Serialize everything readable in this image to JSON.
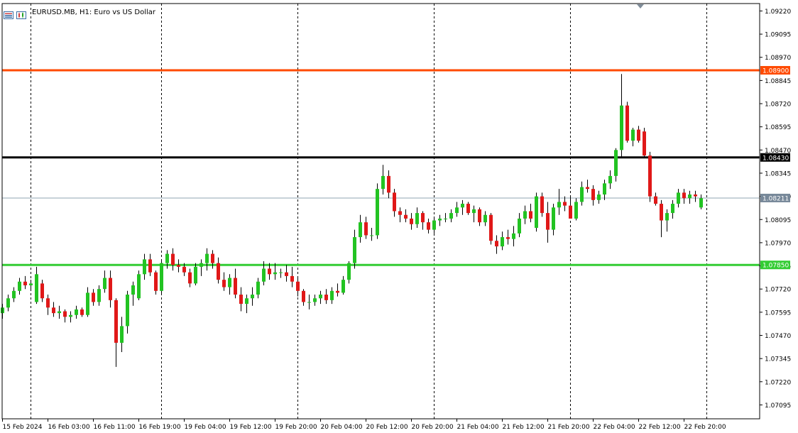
{
  "header": {
    "symbol": "EURUSD.MB",
    "timeframe": "H1",
    "description": "Euro vs US Dollar",
    "title": "EURUSD.MB, H1:  Euro vs US Dollar"
  },
  "colors": {
    "background": "#ffffff",
    "grid": "#000000",
    "bull": "#22c322",
    "bear": "#e01818",
    "wick": "#000000",
    "axis_text": "#000000",
    "resistance": "#ff4a00",
    "pivot": "#000000",
    "support": "#33cc33",
    "bid_line": "#8fa6b3",
    "bid_label_bg": "#778899"
  },
  "chart_data": {
    "type": "candlestick",
    "symbol": "EURUSD.MB",
    "timeframe": "H1",
    "ylim": [
      1.0702,
      1.0926
    ],
    "y_ticks": [
      "1.09220",
      "1.09095",
      "1.08970",
      "1.08845",
      "1.08720",
      "1.08595",
      "1.08470",
      "1.08345",
      "1.08220",
      "1.08095",
      "1.07970",
      "1.07845",
      "1.07720",
      "1.07595",
      "1.07470",
      "1.07345",
      "1.07220",
      "1.07095"
    ],
    "x_labels": [
      "15 Feb 2024",
      "16 Feb 03:00",
      "16 Feb 11:00",
      "16 Feb 19:00",
      "19 Feb 04:00",
      "19 Feb 12:00",
      "19 Feb 20:00",
      "20 Feb 04:00",
      "20 Feb 12:00",
      "20 Feb 20:00",
      "21 Feb 04:00",
      "21 Feb 12:00",
      "21 Feb 20:00",
      "22 Feb 04:00",
      "22 Feb 12:00",
      "22 Feb 20:00"
    ],
    "x_label_bars": [
      0,
      8,
      16,
      24,
      32,
      40,
      48,
      56,
      64,
      72,
      80,
      88,
      96,
      104,
      112,
      120
    ],
    "separator_bars": [
      5,
      28,
      52,
      76,
      100,
      124
    ],
    "hlines": [
      {
        "price": 1.089,
        "label": "1.08900",
        "color_key": "resistance"
      },
      {
        "price": 1.0843,
        "label": "1.08430",
        "color_key": "pivot"
      },
      {
        "price": 1.0785,
        "label": "1.07850",
        "color_key": "support"
      }
    ],
    "bid": {
      "price": 1.08211,
      "label": "1.08211"
    },
    "candles": [
      [
        1.0759,
        1.0764,
        1.0756,
        1.0762
      ],
      [
        1.0762,
        1.0769,
        1.076,
        1.0767
      ],
      [
        1.0767,
        1.0773,
        1.0765,
        1.0771
      ],
      [
        1.0771,
        1.0778,
        1.0769,
        1.0776
      ],
      [
        1.0776,
        1.0779,
        1.0772,
        1.0774
      ],
      [
        1.0774,
        1.0777,
        1.0771,
        1.0775
      ],
      [
        1.0765,
        1.0784,
        1.0764,
        1.078
      ],
      [
        1.0775,
        1.0777,
        1.0765,
        1.0767
      ],
      [
        1.0767,
        1.0769,
        1.0758,
        1.0762
      ],
      [
        1.0762,
        1.0765,
        1.0757,
        1.0759
      ],
      [
        1.0759,
        1.0763,
        1.0756,
        1.076
      ],
      [
        1.076,
        1.0761,
        1.0754,
        1.0757
      ],
      [
        1.0757,
        1.076,
        1.0754,
        1.0758
      ],
      [
        1.0758,
        1.0763,
        1.0756,
        1.0761
      ],
      [
        1.0761,
        1.0762,
        1.0757,
        1.0758
      ],
      [
        1.0758,
        1.0773,
        1.0757,
        1.077
      ],
      [
        1.077,
        1.0772,
        1.0763,
        1.0765
      ],
      [
        1.0765,
        1.0774,
        1.0763,
        1.0772
      ],
      [
        1.0772,
        1.0782,
        1.077,
        1.0778
      ],
      [
        1.0778,
        1.0782,
        1.0762,
        1.0766
      ],
      [
        1.0766,
        1.0767,
        1.073,
        1.0743
      ],
      [
        1.0743,
        1.0757,
        1.0738,
        1.0752
      ],
      [
        1.0752,
        1.0771,
        1.0748,
        1.0769
      ],
      [
        1.0769,
        1.0776,
        1.0763,
        1.0774
      ],
      [
        1.0767,
        1.0782,
        1.0766,
        1.078
      ],
      [
        1.078,
        1.0791,
        1.0777,
        1.0788
      ],
      [
        1.0788,
        1.0791,
        1.0779,
        1.0781
      ],
      [
        1.0781,
        1.0782,
        1.0769,
        1.0771
      ],
      [
        1.0771,
        1.0788,
        1.0769,
        1.0786
      ],
      [
        1.0786,
        1.0793,
        1.0783,
        1.0791
      ],
      [
        1.0791,
        1.0794,
        1.0782,
        1.0785
      ],
      [
        1.0785,
        1.0788,
        1.0781,
        1.0784
      ],
      [
        1.0784,
        1.0786,
        1.0779,
        1.0781
      ],
      [
        1.0781,
        1.0783,
        1.0773,
        1.0775
      ],
      [
        1.0775,
        1.0786,
        1.0774,
        1.0784
      ],
      [
        1.0784,
        1.0788,
        1.0779,
        1.0786
      ],
      [
        1.0786,
        1.0794,
        1.0782,
        1.0791
      ],
      [
        1.0791,
        1.0793,
        1.0783,
        1.0786
      ],
      [
        1.0786,
        1.0789,
        1.0775,
        1.0777
      ],
      [
        1.0777,
        1.0781,
        1.0771,
        1.0773
      ],
      [
        1.0773,
        1.078,
        1.0769,
        1.0778
      ],
      [
        1.0778,
        1.0783,
        1.0767,
        1.0769
      ],
      [
        1.0769,
        1.0773,
        1.076,
        1.0764
      ],
      [
        1.0764,
        1.0769,
        1.0759,
        1.0767
      ],
      [
        1.0767,
        1.0773,
        1.0763,
        1.0769
      ],
      [
        1.0769,
        1.0778,
        1.0767,
        1.0776
      ],
      [
        1.0776,
        1.0787,
        1.0774,
        1.0783
      ],
      [
        1.0783,
        1.0786,
        1.0777,
        1.078
      ],
      [
        1.078,
        1.0786,
        1.0777,
        1.0781
      ],
      [
        1.0781,
        1.0783,
        1.0778,
        1.0781
      ],
      [
        1.0781,
        1.0785,
        1.0776,
        1.0779
      ],
      [
        1.0779,
        1.0784,
        1.0773,
        1.0776
      ],
      [
        1.0776,
        1.0778,
        1.0768,
        1.0771
      ],
      [
        1.0771,
        1.0772,
        1.0763,
        1.0765
      ],
      [
        1.0765,
        1.0769,
        1.0761,
        1.0765
      ],
      [
        1.0765,
        1.0769,
        1.0763,
        1.0767
      ],
      [
        1.0767,
        1.0771,
        1.0764,
        1.0769
      ],
      [
        1.0769,
        1.0772,
        1.0764,
        1.0766
      ],
      [
        1.0766,
        1.0773,
        1.0764,
        1.0771
      ],
      [
        1.0771,
        1.0775,
        1.0768,
        1.077
      ],
      [
        1.077,
        1.0779,
        1.0769,
        1.0777
      ],
      [
        1.0777,
        1.0787,
        1.0775,
        1.0786
      ],
      [
        1.0786,
        1.0804,
        1.0783,
        1.08
      ],
      [
        1.08,
        1.0812,
        1.0797,
        1.0808
      ],
      [
        1.0808,
        1.0811,
        1.0799,
        1.0801
      ],
      [
        1.0801,
        1.0805,
        1.0798,
        1.0801
      ],
      [
        1.0801,
        1.0829,
        1.0799,
        1.0826
      ],
      [
        1.0826,
        1.0839,
        1.0823,
        1.0833
      ],
      [
        1.0833,
        1.0836,
        1.0821,
        1.0824
      ],
      [
        1.0824,
        1.0826,
        1.0811,
        1.0814
      ],
      [
        1.0814,
        1.0816,
        1.0808,
        1.0812
      ],
      [
        1.0812,
        1.0815,
        1.0808,
        1.081
      ],
      [
        1.081,
        1.0813,
        1.0804,
        1.0807
      ],
      [
        1.0807,
        1.0816,
        1.0805,
        1.0813
      ],
      [
        1.0813,
        1.0814,
        1.0804,
        1.0808
      ],
      [
        1.0808,
        1.081,
        1.0802,
        1.0804
      ],
      [
        1.0804,
        1.0811,
        1.0802,
        1.0809
      ],
      [
        1.0809,
        1.0812,
        1.0806,
        1.081
      ],
      [
        1.081,
        1.0813,
        1.0808,
        1.081
      ],
      [
        1.081,
        1.0815,
        1.0808,
        1.0813
      ],
      [
        1.0813,
        1.0819,
        1.0811,
        1.0816
      ],
      [
        1.0816,
        1.082,
        1.0812,
        1.0818
      ],
      [
        1.0818,
        1.0819,
        1.0812,
        1.0813
      ],
      [
        1.0813,
        1.0817,
        1.0808,
        1.0815
      ],
      [
        1.0815,
        1.0816,
        1.0806,
        1.0808
      ],
      [
        1.0808,
        1.0814,
        1.0806,
        1.0812
      ],
      [
        1.0812,
        1.0813,
        1.0796,
        1.0798
      ],
      [
        1.0798,
        1.0801,
        1.0791,
        1.0795
      ],
      [
        1.0795,
        1.0803,
        1.0793,
        1.08
      ],
      [
        1.08,
        1.0804,
        1.0796,
        1.0799
      ],
      [
        1.0799,
        1.0806,
        1.0795,
        1.0802
      ],
      [
        1.0802,
        1.0813,
        1.08,
        1.081
      ],
      [
        1.081,
        1.0817,
        1.0807,
        1.0814
      ],
      [
        1.0814,
        1.0818,
        1.0808,
        1.081
      ],
      [
        1.0805,
        1.0824,
        1.0803,
        1.0822
      ],
      [
        1.0822,
        1.0824,
        1.0811,
        1.0813
      ],
      [
        1.0813,
        1.0819,
        1.0797,
        1.0804
      ],
      [
        1.0804,
        1.0818,
        1.0801,
        1.0816
      ],
      [
        1.0816,
        1.0826,
        1.0812,
        1.0819
      ],
      [
        1.0819,
        1.0822,
        1.0814,
        1.0817
      ],
      [
        1.0817,
        1.0822,
        1.0812,
        1.081
      ],
      [
        1.081,
        1.0821,
        1.0809,
        1.0819
      ],
      [
        1.0819,
        1.083,
        1.0817,
        1.0827
      ],
      [
        1.0827,
        1.0831,
        1.0824,
        1.0826
      ],
      [
        1.0826,
        1.0828,
        1.0817,
        1.082
      ],
      [
        1.082,
        1.0825,
        1.0818,
        1.0823
      ],
      [
        1.0823,
        1.0831,
        1.082,
        1.0829
      ],
      [
        1.0829,
        1.0836,
        1.0826,
        1.0833
      ],
      [
        1.0833,
        1.0848,
        1.083,
        1.0847
      ],
      [
        1.0847,
        1.0888,
        1.0843,
        1.0871
      ],
      [
        1.0871,
        1.0873,
        1.0851,
        1.0852
      ],
      [
        1.0852,
        1.0859,
        1.0849,
        1.0858
      ],
      [
        1.0858,
        1.086,
        1.0851,
        1.0852
      ],
      [
        1.0857,
        1.0859,
        1.0843,
        1.0844
      ],
      [
        1.0844,
        1.0846,
        1.0819,
        1.0822
      ],
      [
        1.0822,
        1.0824,
        1.0817,
        1.0818
      ],
      [
        1.0818,
        1.082,
        1.08,
        1.0809
      ],
      [
        1.0809,
        1.0815,
        1.0803,
        1.0813
      ],
      [
        1.0813,
        1.082,
        1.081,
        1.0818
      ],
      [
        1.0818,
        1.0826,
        1.0816,
        1.0824
      ],
      [
        1.0824,
        1.0826,
        1.0818,
        1.0821
      ],
      [
        1.0821,
        1.0825,
        1.0818,
        1.0823
      ],
      [
        1.0823,
        1.0825,
        1.0819,
        1.0822
      ],
      [
        1.0816,
        1.0823,
        1.0815,
        1.0821
      ]
    ]
  }
}
